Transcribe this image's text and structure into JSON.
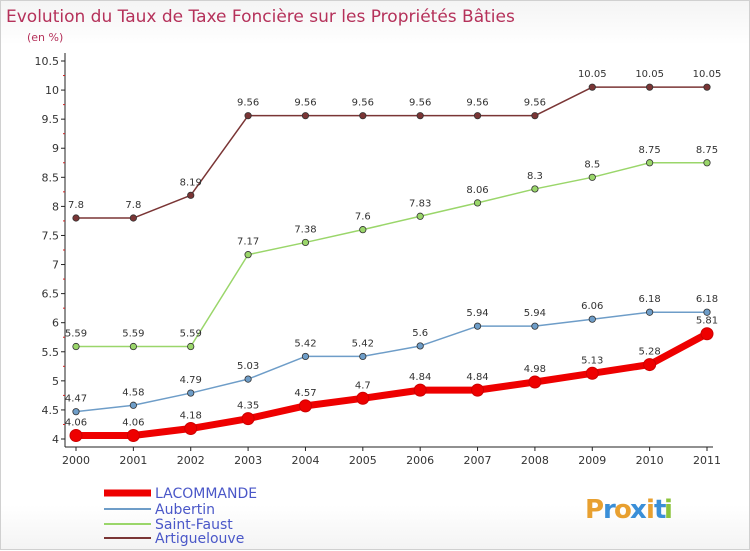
{
  "chart_data": {
    "type": "line",
    "title": "Evolution du Taux de Taxe Foncière sur les Propriétés Bâties",
    "subtitle": "(en %)",
    "xlabel": "",
    "ylabel": "",
    "x": [
      "2000",
      "2001",
      "2002",
      "2003",
      "2004",
      "2005",
      "2006",
      "2007",
      "2008",
      "2009",
      "2010",
      "2011"
    ],
    "ylim": [
      4,
      10.5
    ],
    "yticks": [
      "4",
      "4.5",
      "5",
      "5.5",
      "6",
      "6.5",
      "7",
      "7.5",
      "8",
      "8.5",
      "9",
      "9.5",
      "10",
      "10.5"
    ],
    "grid": "none",
    "legend_position": "bottom-left",
    "series": [
      {
        "name": "LACOMMANDE",
        "color": "#ee0000",
        "values": [
          4.06,
          4.06,
          4.18,
          4.35,
          4.57,
          4.7,
          4.84,
          4.84,
          4.98,
          5.13,
          5.28,
          5.81
        ],
        "labels": [
          "4.06",
          "4.06",
          "4.18",
          "4.35",
          "4.57",
          "4.7",
          "4.84",
          "4.84",
          "4.98",
          "5.13",
          "5.28",
          "5.81"
        ]
      },
      {
        "name": "Aubertin",
        "color": "#6e9dc8",
        "values": [
          4.47,
          4.58,
          4.79,
          5.03,
          5.42,
          5.42,
          5.6,
          5.94,
          5.94,
          6.06,
          6.18,
          6.18
        ],
        "labels": [
          "4.47",
          "4.58",
          "4.79",
          "5.03",
          "5.42",
          "5.42",
          "5.6",
          "5.94",
          "5.94",
          "6.06",
          "6.18",
          "6.18"
        ]
      },
      {
        "name": "Saint-Faust",
        "color": "#9ad66a",
        "values": [
          5.59,
          5.59,
          5.59,
          7.17,
          7.38,
          7.6,
          7.83,
          8.06,
          8.3,
          8.5,
          8.75,
          8.75
        ],
        "labels": [
          "5.59",
          "5.59",
          "5.59",
          "7.17",
          "7.38",
          "7.6",
          "7.83",
          "8.06",
          "8.3",
          "8.5",
          "8.75",
          "8.75"
        ]
      },
      {
        "name": "Artiguelouve",
        "color": "#7a3535",
        "values": [
          7.8,
          7.8,
          8.19,
          9.56,
          9.56,
          9.56,
          9.56,
          9.56,
          9.56,
          10.05,
          10.05,
          10.05
        ],
        "labels": [
          "7.8",
          "7.8",
          "8.19",
          "9.56",
          "9.56",
          "9.56",
          "9.56",
          "9.56",
          "9.56",
          "10.05",
          "10.05",
          "10.05"
        ]
      }
    ]
  },
  "logo": {
    "text": "Proxiti",
    "letters": [
      "P",
      "r",
      "o",
      "x",
      "i",
      "t",
      "i"
    ],
    "colors": [
      "#e8a030",
      "#3a8fd8",
      "#e8a030",
      "#3a8fd8",
      "#e8a030",
      "#3a8fd8",
      "#8cc43c"
    ]
  }
}
